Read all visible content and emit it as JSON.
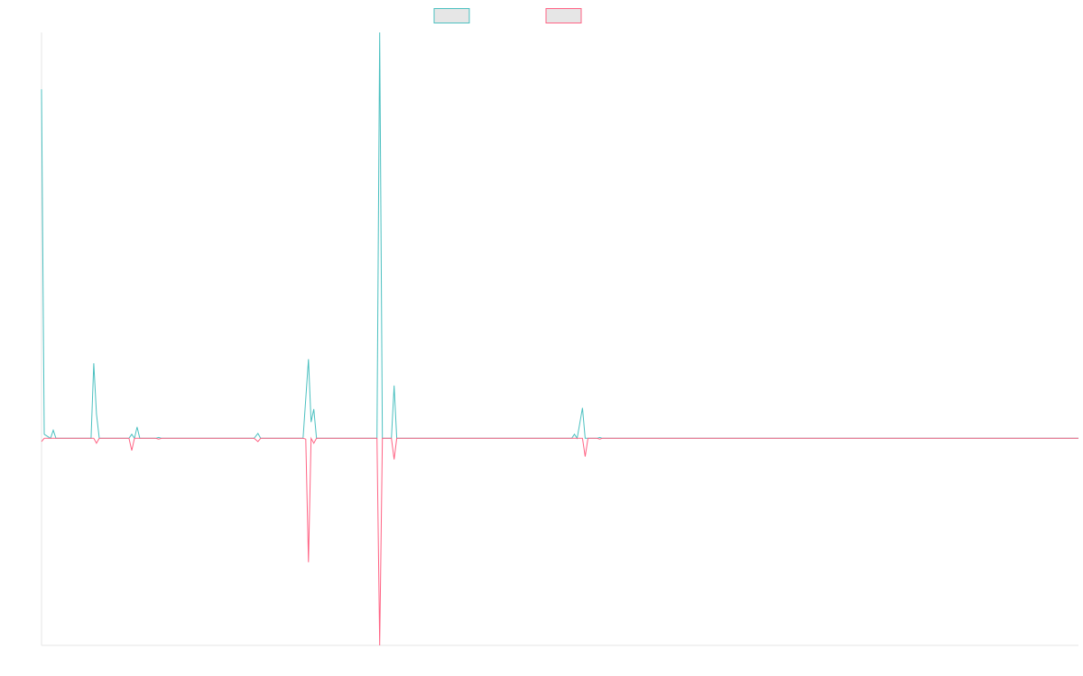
{
  "chart_data": {
    "type": "line",
    "title": "",
    "xlabel": "",
    "ylabel": "",
    "grid": false,
    "legend_position": "top-center",
    "xlim": [
      0,
      1
    ],
    "ylim": [
      -0.51,
      1
    ],
    "series": [
      {
        "color": "#4bc0c0",
        "legend_fill": "#e6e6e6",
        "points": [
          [
            0.0,
            0.86
          ],
          [
            0.0026,
            0.01
          ],
          [
            0.0087,
            0.0
          ],
          [
            0.0113,
            0.02
          ],
          [
            0.0139,
            0.0
          ],
          [
            0.0478,
            0.0
          ],
          [
            0.0504,
            0.185
          ],
          [
            0.053,
            0.06
          ],
          [
            0.0557,
            0.0
          ],
          [
            0.0843,
            0.0
          ],
          [
            0.087,
            0.01
          ],
          [
            0.0896,
            0.0
          ],
          [
            0.0922,
            0.028
          ],
          [
            0.0948,
            0.0
          ],
          [
            0.11,
            0.0
          ],
          [
            0.113,
            0.002
          ],
          [
            0.116,
            0.0
          ],
          [
            0.205,
            0.0
          ],
          [
            0.2087,
            0.012
          ],
          [
            0.2113,
            0.0
          ],
          [
            0.2522,
            0.0
          ],
          [
            0.2574,
            0.195
          ],
          [
            0.26,
            0.04
          ],
          [
            0.2626,
            0.072
          ],
          [
            0.2652,
            0.0
          ],
          [
            0.3235,
            0.0
          ],
          [
            0.3261,
            1.0
          ],
          [
            0.3287,
            0.0
          ],
          [
            0.3374,
            0.0
          ],
          [
            0.34,
            0.13
          ],
          [
            0.3426,
            0.0
          ],
          [
            0.5113,
            0.0
          ],
          [
            0.5139,
            0.01
          ],
          [
            0.5165,
            0.0
          ],
          [
            0.5217,
            0.075
          ],
          [
            0.5243,
            0.0
          ],
          [
            0.5357,
            0.0
          ],
          [
            0.5383,
            0.002
          ],
          [
            0.5409,
            0.0
          ],
          [
            1.0,
            0.0
          ]
        ]
      },
      {
        "color": "#ff6384",
        "legend_fill": "#e6e6e6",
        "points": [
          [
            0.0,
            -0.008
          ],
          [
            0.0026,
            0.0
          ],
          [
            0.0504,
            0.0
          ],
          [
            0.053,
            -0.012
          ],
          [
            0.0557,
            0.0
          ],
          [
            0.0843,
            0.0
          ],
          [
            0.087,
            -0.03
          ],
          [
            0.0896,
            0.0
          ],
          [
            0.11,
            0.0
          ],
          [
            0.113,
            -0.002
          ],
          [
            0.116,
            0.0
          ],
          [
            0.205,
            0.0
          ],
          [
            0.2087,
            -0.008
          ],
          [
            0.2113,
            0.0
          ],
          [
            0.2522,
            0.0
          ],
          [
            0.2548,
            -0.002
          ],
          [
            0.2574,
            -0.305
          ],
          [
            0.26,
            0.0
          ],
          [
            0.2626,
            -0.012
          ],
          [
            0.2652,
            0.0
          ],
          [
            0.3235,
            0.0
          ],
          [
            0.3261,
            -0.51
          ],
          [
            0.3287,
            0.0
          ],
          [
            0.3374,
            0.0
          ],
          [
            0.34,
            -0.052
          ],
          [
            0.3426,
            0.0
          ],
          [
            0.5217,
            0.0
          ],
          [
            0.5243,
            -0.045
          ],
          [
            0.527,
            0.0
          ],
          [
            0.5357,
            0.0
          ],
          [
            0.5383,
            -0.002
          ],
          [
            0.5409,
            0.0
          ],
          [
            1.0,
            0.0
          ]
        ]
      }
    ]
  }
}
